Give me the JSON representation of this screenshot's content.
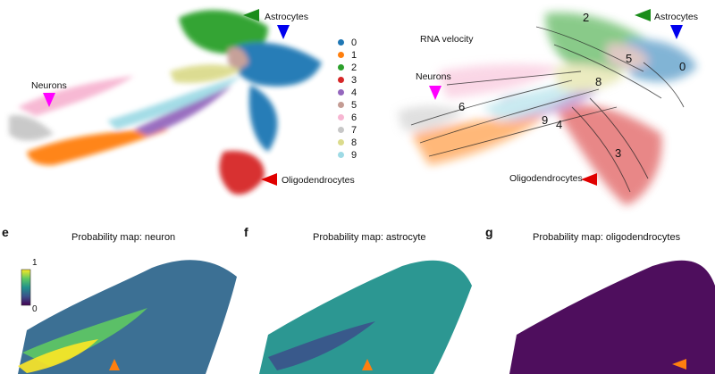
{
  "labels": {
    "neurons_a": "Neurons",
    "astrocytes_a": "Astrocytes",
    "oligodendrocytes_a": "Oligodendrocytes",
    "rna_velocity": "RNA velocity",
    "neurons_b": "Neurons",
    "astrocytes_b": "Astrocytes",
    "oligodendrocytes_b": "Oligodendrocytes"
  },
  "legend": [
    {
      "label": "0",
      "color": "#1f77b4"
    },
    {
      "label": "1",
      "color": "#ff7f0e"
    },
    {
      "label": "2",
      "color": "#2ca02c"
    },
    {
      "label": "3",
      "color": "#d62728"
    },
    {
      "label": "4",
      "color": "#9467bd"
    },
    {
      "label": "5",
      "color": "#c49c94"
    },
    {
      "label": "6",
      "color": "#f7b6d2"
    },
    {
      "label": "7",
      "color": "#c7c7c7"
    },
    {
      "label": "8",
      "color": "#dbdb8d"
    },
    {
      "label": "9",
      "color": "#9edae5"
    }
  ],
  "cluster_numbers": [
    "2",
    "5",
    "0",
    "8",
    "6",
    "9",
    "4",
    "3"
  ],
  "marker_colors": {
    "neurons": "#ff00ff",
    "astrocytes": "#1a8c1a",
    "astrocytes_blue": "#0000ee",
    "oligodendrocytes": "#e00000",
    "probability": "#ff7f0e"
  },
  "panels": [
    {
      "letter": "e",
      "title": "Probability map: neuron"
    },
    {
      "letter": "f",
      "title": "Probability map: astrocyte"
    },
    {
      "letter": "g",
      "title": "Probability map: oligodendrocytes"
    }
  ],
  "colorbar": {
    "max": "1",
    "min": "0",
    "colormap": "viridis"
  }
}
